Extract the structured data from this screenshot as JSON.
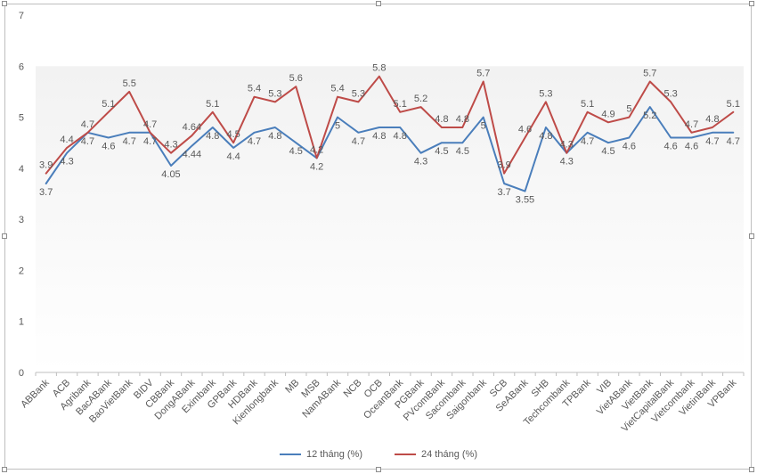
{
  "chart_data": {
    "type": "line",
    "title": "",
    "xlabel": "",
    "ylabel": "",
    "ylim": [
      0,
      7
    ],
    "yticks": [
      "0",
      "1",
      "2",
      "3",
      "4",
      "5",
      "6",
      "7"
    ],
    "grid": false,
    "legend_position": "bottom",
    "categories": [
      "ABBank",
      "ACB",
      "Agribank",
      "BacABank",
      "BaoVietBank",
      "BIDV",
      "CBBank",
      "DongABank",
      "Eximbank",
      "GPBank",
      "HDBank",
      "Kienlongbank",
      "MB",
      "MSB",
      "NamABank",
      "NCB",
      "OCB",
      "OceanBank",
      "PGBank",
      "PVcomBank",
      "Sacombank",
      "Saigonbank",
      "SCB",
      "SeABank",
      "SHB",
      "Techcombank",
      "TPBank",
      "VIB",
      "VietABank",
      "VietBank",
      "VietCapitalBank",
      "Vietcombank",
      "VietinBank",
      "VPBank"
    ],
    "series": [
      {
        "name": "12 tháng (%)",
        "color": "#4a7ebb",
        "values": [
          3.7,
          4.3,
          4.7,
          4.6,
          4.7,
          4.7,
          4.05,
          4.44,
          4.8,
          4.4,
          4.7,
          4.8,
          4.5,
          4.2,
          5,
          4.7,
          4.8,
          4.8,
          4.3,
          4.5,
          4.5,
          5,
          3.7,
          3.55,
          4.8,
          4.3,
          4.7,
          4.5,
          4.6,
          5.2,
          4.6,
          4.6,
          4.7,
          4.7
        ]
      },
      {
        "name": "24 tháng (%)",
        "color": "#be4b48",
        "values": [
          3.9,
          4.4,
          4.7,
          5.1,
          5.5,
          4.7,
          4.3,
          4.64,
          5.1,
          4.5,
          5.4,
          5.3,
          5.6,
          4.2,
          5.4,
          5.3,
          5.8,
          5.1,
          5.2,
          4.8,
          4.8,
          5.7,
          3.9,
          4.6,
          5.3,
          4.3,
          5.1,
          4.9,
          5,
          5.7,
          5.3,
          4.7,
          4.8,
          5.1
        ]
      }
    ]
  }
}
